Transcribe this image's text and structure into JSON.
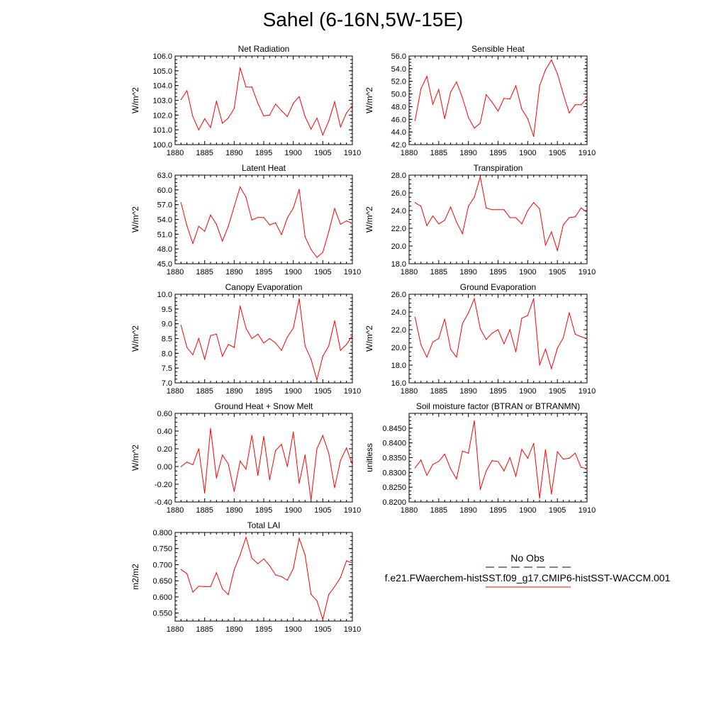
{
  "title": "Sahel (6-16N,5W-15E)",
  "colors": {
    "model_line": "#ff0000",
    "obs_line": "#000080",
    "axis": "#000000",
    "background": "#ffffff"
  },
  "legend": {
    "entries": [
      {
        "label": "No Obs",
        "color": "#000080",
        "dash": "dashed"
      },
      {
        "label": "f.e21.FWaerchem-histSST.f09_g17.CMIP6-histSST-WACCM.001",
        "color": "#ff0000",
        "dash": "solid"
      }
    ]
  },
  "chart_data": [
    {
      "type": "line",
      "title": "Net Radiation",
      "ylabel": "W/m^2",
      "xlim": [
        1880,
        1910
      ],
      "xticks": [
        "1880",
        "1885",
        "1890",
        "1895",
        "1900",
        "1905",
        "1910"
      ],
      "ylim": [
        100.0,
        106.0
      ],
      "yticks": [
        "100.0",
        "101.0",
        "102.0",
        "103.0",
        "104.0",
        "105.0",
        "106.0"
      ],
      "series": [
        {
          "color": "#ff0000",
          "x": [
            1881,
            1882,
            1883,
            1884,
            1885,
            1886,
            1887,
            1888,
            1889,
            1890,
            1891,
            1892,
            1893,
            1894,
            1895,
            1896,
            1897,
            1898,
            1899,
            1900,
            1901,
            1902,
            1903,
            1904,
            1905,
            1906,
            1907,
            1908,
            1909,
            1910
          ],
          "values": [
            103.05,
            103.65,
            101.9,
            101.0,
            101.75,
            101.15,
            102.95,
            101.45,
            101.8,
            102.45,
            105.2,
            103.9,
            103.9,
            102.8,
            101.95,
            102.0,
            102.75,
            102.3,
            101.9,
            102.8,
            103.25,
            101.9,
            101.05,
            101.8,
            100.65,
            101.6,
            102.9,
            101.2,
            102.15,
            102.65
          ]
        }
      ]
    },
    {
      "type": "line",
      "title": "Sensible Heat",
      "ylabel": "W/m^2",
      "xlim": [
        1880,
        1910
      ],
      "xticks": [
        "1880",
        "1885",
        "1890",
        "1895",
        "1900",
        "1905",
        "1910"
      ],
      "ylim": [
        42.0,
        56.0
      ],
      "yticks": [
        "42.0",
        "44.0",
        "46.0",
        "48.0",
        "50.0",
        "52.0",
        "54.0",
        "56.0"
      ],
      "series": [
        {
          "color": "#ff0000",
          "x": [
            1881,
            1882,
            1883,
            1884,
            1885,
            1886,
            1887,
            1888,
            1889,
            1890,
            1891,
            1892,
            1893,
            1894,
            1895,
            1896,
            1897,
            1898,
            1899,
            1900,
            1901,
            1902,
            1903,
            1904,
            1905,
            1906,
            1907,
            1908,
            1909,
            1910
          ],
          "values": [
            45.8,
            50.8,
            52.8,
            48.4,
            50.7,
            46.1,
            50.3,
            51.9,
            49.4,
            46.3,
            44.6,
            45.4,
            49.9,
            48.7,
            47.3,
            49.3,
            49.2,
            51.3,
            47.6,
            46.1,
            43.3,
            51.3,
            53.8,
            55.4,
            53.2,
            50.0,
            47.0,
            48.3,
            48.3,
            49.3
          ]
        }
      ]
    },
    {
      "type": "line",
      "title": "Latent Heat",
      "ylabel": "W/m^2",
      "xlim": [
        1880,
        1910
      ],
      "xticks": [
        "1880",
        "1885",
        "1890",
        "1895",
        "1900",
        "1905",
        "1910"
      ],
      "ylim": [
        45.0,
        63.0
      ],
      "yticks": [
        "45.0",
        "48.0",
        "51.0",
        "54.0",
        "57.0",
        "60.0",
        "63.0"
      ],
      "series": [
        {
          "color": "#ff0000",
          "x": [
            1881,
            1882,
            1883,
            1884,
            1885,
            1886,
            1887,
            1888,
            1889,
            1890,
            1891,
            1892,
            1893,
            1894,
            1895,
            1896,
            1897,
            1898,
            1899,
            1900,
            1901,
            1902,
            1903,
            1904,
            1905,
            1906,
            1907,
            1908,
            1909,
            1910
          ],
          "values": [
            57.4,
            52.7,
            49.1,
            52.6,
            51.6,
            54.9,
            53.0,
            49.6,
            52.6,
            56.6,
            60.6,
            58.5,
            53.9,
            54.4,
            54.4,
            52.9,
            53.3,
            50.9,
            54.3,
            56.3,
            60.1,
            50.5,
            47.9,
            46.3,
            47.3,
            51.5,
            56.2,
            53.0,
            53.7,
            53.2
          ]
        }
      ]
    },
    {
      "type": "line",
      "title": "Transpiration",
      "ylabel": "W/m^2",
      "xlim": [
        1880,
        1910
      ],
      "xticks": [
        "1880",
        "1885",
        "1890",
        "1895",
        "1900",
        "1905",
        "1910"
      ],
      "ylim": [
        18.0,
        28.0
      ],
      "yticks": [
        "18.0",
        "20.0",
        "22.0",
        "24.0",
        "26.0",
        "28.0"
      ],
      "series": [
        {
          "color": "#ff0000",
          "x": [
            1881,
            1882,
            1883,
            1884,
            1885,
            1886,
            1887,
            1888,
            1889,
            1890,
            1891,
            1892,
            1893,
            1894,
            1895,
            1896,
            1897,
            1898,
            1899,
            1900,
            1901,
            1902,
            1903,
            1904,
            1905,
            1906,
            1907,
            1908,
            1909,
            1910
          ],
          "values": [
            24.9,
            24.5,
            22.3,
            23.4,
            22.5,
            22.9,
            24.4,
            22.7,
            21.4,
            24.5,
            25.5,
            27.8,
            24.3,
            24.1,
            24.1,
            24.1,
            23.2,
            23.2,
            22.5,
            24.0,
            24.9,
            24.2,
            20.1,
            21.6,
            19.5,
            22.4,
            23.2,
            23.3,
            24.3,
            23.8
          ]
        }
      ]
    },
    {
      "type": "line",
      "title": "Canopy Evaporation",
      "ylabel": "W/m^2",
      "xlim": [
        1880,
        1910
      ],
      "xticks": [
        "1880",
        "1885",
        "1890",
        "1895",
        "1900",
        "1905",
        "1910"
      ],
      "ylim": [
        7.0,
        10.0
      ],
      "yticks": [
        "7.0",
        "7.5",
        "8.0",
        "8.5",
        "9.0",
        "9.5",
        "10.0"
      ],
      "series": [
        {
          "color": "#ff0000",
          "x": [
            1881,
            1882,
            1883,
            1884,
            1885,
            1886,
            1887,
            1888,
            1889,
            1890,
            1891,
            1892,
            1893,
            1894,
            1895,
            1896,
            1897,
            1898,
            1899,
            1900,
            1901,
            1902,
            1903,
            1904,
            1905,
            1906,
            1907,
            1908,
            1909,
            1910
          ],
          "values": [
            8.95,
            8.2,
            7.95,
            8.5,
            7.8,
            8.6,
            8.65,
            7.9,
            8.3,
            8.2,
            9.6,
            8.85,
            8.5,
            8.65,
            8.35,
            8.5,
            8.35,
            8.1,
            8.55,
            8.85,
            9.85,
            8.25,
            7.8,
            7.1,
            7.9,
            8.25,
            9.1,
            8.1,
            8.3,
            8.6
          ]
        }
      ]
    },
    {
      "type": "line",
      "title": "Ground Evaporation",
      "ylabel": "W/m^2",
      "xlim": [
        1880,
        1910
      ],
      "xticks": [
        "1880",
        "1885",
        "1890",
        "1895",
        "1900",
        "1905",
        "1910"
      ],
      "ylim": [
        16.0,
        26.0
      ],
      "yticks": [
        "16.0",
        "18.0",
        "20.0",
        "22.0",
        "24.0",
        "26.0"
      ],
      "series": [
        {
          "color": "#ff0000",
          "x": [
            1881,
            1882,
            1883,
            1884,
            1885,
            1886,
            1887,
            1888,
            1889,
            1890,
            1891,
            1892,
            1893,
            1894,
            1895,
            1896,
            1897,
            1898,
            1899,
            1900,
            1901,
            1902,
            1903,
            1904,
            1905,
            1906,
            1907,
            1908,
            1909,
            1910
          ],
          "values": [
            23.4,
            20.3,
            18.9,
            20.6,
            21.0,
            23.2,
            19.8,
            18.9,
            22.7,
            23.9,
            25.5,
            22.1,
            20.9,
            21.6,
            22.0,
            20.4,
            22.0,
            19.5,
            23.3,
            23.6,
            25.5,
            18.0,
            19.8,
            17.6,
            19.9,
            21.1,
            23.9,
            21.5,
            21.2,
            21.0
          ]
        }
      ]
    },
    {
      "type": "line",
      "title": "Ground Heat + Snow Melt",
      "ylabel": "W/m^2",
      "xlim": [
        1880,
        1910
      ],
      "xticks": [
        "1880",
        "1885",
        "1890",
        "1895",
        "1900",
        "1905",
        "1910"
      ],
      "ylim": [
        -0.4,
        0.6
      ],
      "yticks": [
        "-0.40",
        "-0.20",
        "0.00",
        "0.20",
        "0.40",
        "0.60"
      ],
      "series": [
        {
          "color": "#ff0000",
          "x": [
            1881,
            1882,
            1883,
            1884,
            1885,
            1886,
            1887,
            1888,
            1889,
            1890,
            1891,
            1892,
            1893,
            1894,
            1895,
            1896,
            1897,
            1898,
            1899,
            1900,
            1901,
            1902,
            1903,
            1904,
            1905,
            1906,
            1907,
            1908,
            1909,
            1910
          ],
          "values": [
            0.0,
            0.05,
            0.02,
            0.2,
            -0.3,
            0.43,
            -0.13,
            0.13,
            0.03,
            -0.28,
            0.06,
            -0.03,
            0.35,
            -0.1,
            0.34,
            -0.15,
            0.18,
            0.25,
            0.0,
            0.39,
            -0.19,
            0.13,
            -0.38,
            0.2,
            0.35,
            0.15,
            -0.24,
            0.07,
            0.21,
            0.02
          ]
        }
      ]
    },
    {
      "type": "line",
      "title": "Soil moisture factor (BTRAN or BTRANMN)",
      "ylabel": "unitless",
      "xlim": [
        1880,
        1910
      ],
      "xticks": [
        "1880",
        "1885",
        "1890",
        "1895",
        "1900",
        "1905",
        "1910"
      ],
      "ylim": [
        0.82,
        0.85
      ],
      "yticks": [
        "0.8200",
        "0.8250",
        "0.8300",
        "0.8350",
        "0.8400",
        "0.8450"
      ],
      "series": [
        {
          "color": "#ff0000",
          "x": [
            1881,
            1882,
            1883,
            1884,
            1885,
            1886,
            1887,
            1888,
            1889,
            1890,
            1891,
            1892,
            1893,
            1894,
            1895,
            1896,
            1897,
            1898,
            1899,
            1900,
            1901,
            1902,
            1903,
            1904,
            1905,
            1906,
            1907,
            1908,
            1909,
            1910
          ],
          "values": [
            0.8315,
            0.8342,
            0.829,
            0.8327,
            0.8337,
            0.8362,
            0.8312,
            0.8278,
            0.8372,
            0.8365,
            0.8475,
            0.8242,
            0.8305,
            0.834,
            0.8337,
            0.8305,
            0.835,
            0.8287,
            0.8378,
            0.8348,
            0.8398,
            0.8213,
            0.8377,
            0.8227,
            0.837,
            0.8345,
            0.8348,
            0.8365,
            0.8317,
            0.8313
          ]
        }
      ]
    },
    {
      "type": "line",
      "title": "Total LAI",
      "ylabel": "m2/m2",
      "xlim": [
        1880,
        1910
      ],
      "xticks": [
        "1880",
        "1885",
        "1890",
        "1895",
        "1900",
        "1905",
        "1910"
      ],
      "ylim": [
        0.525,
        0.8
      ],
      "yticks": [
        "0.550",
        "0.600",
        "0.650",
        "0.700",
        "0.750",
        "0.800"
      ],
      "series": [
        {
          "color": "#ff0000",
          "x": [
            1881,
            1882,
            1883,
            1884,
            1885,
            1886,
            1887,
            1888,
            1889,
            1890,
            1891,
            1892,
            1893,
            1894,
            1895,
            1896,
            1897,
            1898,
            1899,
            1900,
            1901,
            1902,
            1903,
            1904,
            1905,
            1906,
            1907,
            1908,
            1909,
            1910
          ],
          "values": [
            0.685,
            0.672,
            0.615,
            0.633,
            0.632,
            0.632,
            0.675,
            0.625,
            0.607,
            0.684,
            0.73,
            0.785,
            0.72,
            0.703,
            0.718,
            0.697,
            0.668,
            0.663,
            0.652,
            0.688,
            0.782,
            0.73,
            0.608,
            0.588,
            0.53,
            0.607,
            0.632,
            0.66,
            0.712,
            0.705
          ]
        }
      ]
    }
  ]
}
